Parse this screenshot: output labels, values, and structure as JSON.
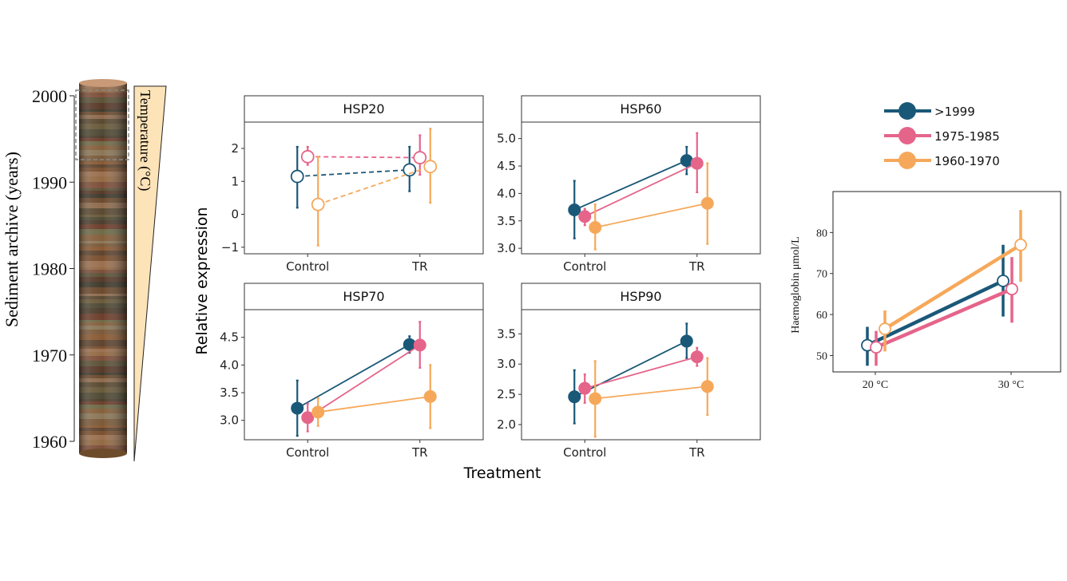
{
  "colors": {
    "s1999": "#1a5878",
    "s1975": "#e5648a",
    "s1960": "#f6a85a",
    "wedge": "#fde3b8",
    "panel_border": "#333333",
    "strip_bg": "#ffffff"
  },
  "core": {
    "ylabel": "Sediment archive (years)",
    "ylim": [
      1957,
      2002
    ],
    "ticks": [
      2000,
      1990,
      1980,
      1970,
      1960
    ],
    "tick_labels": [
      "2000",
      "1990",
      "1980",
      "1970",
      "1960"
    ],
    "wedge_label": "Temperature (°C)"
  },
  "chart_data": [
    {
      "type": "line",
      "title": "HSP20",
      "categories": [
        "Control",
        "TR"
      ],
      "ylim": [
        -1.2,
        2.8
      ],
      "yticks": [
        -1,
        0,
        1,
        2
      ],
      "ytick_labels": [
        "−1",
        "0",
        "1",
        "2"
      ],
      "filled": false,
      "line_style": "dashed",
      "series": [
        {
          "key": "s1999",
          "values": [
            1.15,
            1.35
          ],
          "err_low": [
            0.2,
            0.7
          ],
          "err_high": [
            2.05,
            2.05
          ]
        },
        {
          "key": "s1975",
          "values": [
            1.75,
            1.72
          ],
          "err_low": [
            1.5,
            1.2
          ],
          "err_high": [
            2.05,
            2.4
          ]
        },
        {
          "key": "s1960",
          "values": [
            0.3,
            1.45
          ],
          "err_low": [
            -0.95,
            0.35
          ],
          "err_high": [
            1.75,
            2.6
          ]
        }
      ]
    },
    {
      "type": "line",
      "title": "HSP60",
      "categories": [
        "Control",
        "TR"
      ],
      "ylim": [
        2.9,
        5.3
      ],
      "yticks": [
        3.0,
        3.5,
        4.0,
        4.5,
        5.0
      ],
      "ytick_labels": [
        "3.0",
        "3.5",
        "4.0",
        "4.5",
        "5.0"
      ],
      "filled": true,
      "line_style": "solid",
      "series": [
        {
          "key": "s1999",
          "values": [
            3.7,
            4.6
          ],
          "err_low": [
            3.18,
            4.35
          ],
          "err_high": [
            4.23,
            4.85
          ]
        },
        {
          "key": "s1975",
          "values": [
            3.58,
            4.55
          ],
          "err_low": [
            3.42,
            4.02
          ],
          "err_high": [
            3.72,
            5.1
          ]
        },
        {
          "key": "s1960",
          "values": [
            3.38,
            3.82
          ],
          "err_low": [
            2.98,
            3.08
          ],
          "err_high": [
            3.8,
            4.55
          ]
        }
      ]
    },
    {
      "type": "line",
      "title": "HSP70",
      "categories": [
        "Control",
        "TR"
      ],
      "ylim": [
        2.65,
        5.0
      ],
      "yticks": [
        3.0,
        3.5,
        4.0,
        4.5
      ],
      "ytick_labels": [
        "3.0",
        "3.5",
        "4.0",
        "4.5"
      ],
      "filled": true,
      "line_style": "solid",
      "series": [
        {
          "key": "s1999",
          "values": [
            3.22,
            4.37
          ],
          "err_low": [
            2.72,
            4.22
          ],
          "err_high": [
            3.72,
            4.52
          ]
        },
        {
          "key": "s1975",
          "values": [
            3.05,
            4.36
          ],
          "err_low": [
            2.8,
            3.95
          ],
          "err_high": [
            3.3,
            4.78
          ]
        },
        {
          "key": "s1960",
          "values": [
            3.15,
            3.43
          ],
          "err_low": [
            2.9,
            2.86
          ],
          "err_high": [
            3.4,
            4.0
          ]
        }
      ]
    },
    {
      "type": "line",
      "title": "HSP90",
      "categories": [
        "Control",
        "TR"
      ],
      "ylim": [
        1.75,
        3.9
      ],
      "yticks": [
        2.0,
        2.5,
        3.0,
        3.5
      ],
      "ytick_labels": [
        "2.0",
        "2.5",
        "3.0",
        "3.5"
      ],
      "filled": true,
      "line_style": "solid",
      "series": [
        {
          "key": "s1999",
          "values": [
            2.46,
            3.38
          ],
          "err_low": [
            2.02,
            3.1
          ],
          "err_high": [
            2.9,
            3.67
          ]
        },
        {
          "key": "s1975",
          "values": [
            2.6,
            3.12
          ],
          "err_low": [
            2.36,
            2.97
          ],
          "err_high": [
            2.83,
            3.27
          ]
        },
        {
          "key": "s1960",
          "values": [
            2.43,
            2.63
          ],
          "err_low": [
            1.8,
            2.16
          ],
          "err_high": [
            3.05,
            3.1
          ]
        }
      ]
    },
    {
      "type": "line",
      "title": "",
      "categories": [
        "20 °C",
        "30 °C"
      ],
      "ylabel": "Haemoglobin μmol/L",
      "ylim": [
        46,
        90
      ],
      "yticks": [
        50,
        60,
        70,
        80
      ],
      "ytick_labels": [
        "50",
        "60",
        "70",
        "80"
      ],
      "filled": false,
      "line_style": "solid",
      "series": [
        {
          "key": "s1999",
          "values": [
            52.5,
            68.2
          ],
          "err_low": [
            47.5,
            59.5
          ],
          "err_high": [
            57,
            77
          ]
        },
        {
          "key": "s1975",
          "values": [
            52.0,
            66.2
          ],
          "err_low": [
            47.5,
            58.0
          ],
          "err_high": [
            56,
            74
          ]
        },
        {
          "key": "s1960",
          "values": [
            56.5,
            77.0
          ],
          "err_low": [
            51,
            68
          ],
          "err_high": [
            61,
            85.5
          ]
        }
      ]
    }
  ],
  "facets": {
    "ylabel": "Relative expression",
    "xlabel": "Treatment"
  },
  "legend": {
    "entries": [
      {
        "key": "s1999",
        "label": ">1999"
      },
      {
        "key": "s1975",
        "label": "1975-1985"
      },
      {
        "key": "s1960",
        "label": "1960-1970"
      }
    ]
  }
}
